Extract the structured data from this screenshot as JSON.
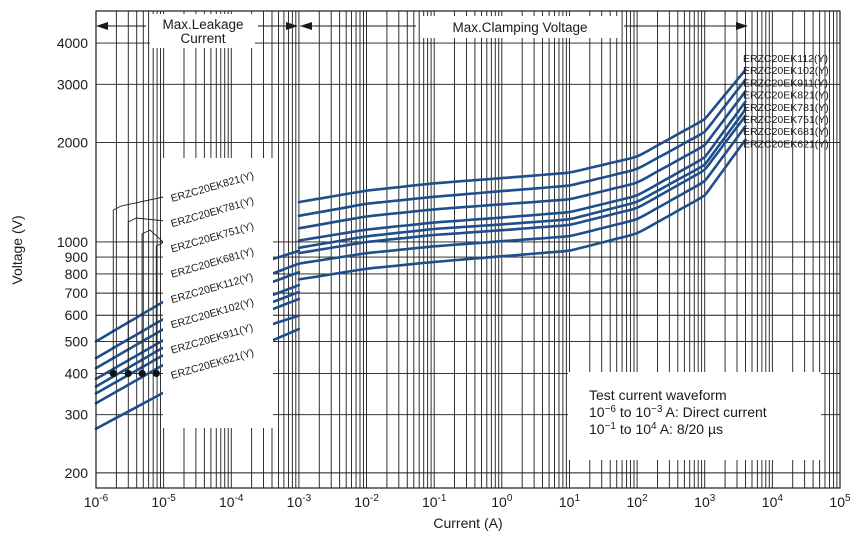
{
  "chart_data": {
    "type": "line",
    "xscale": "log",
    "yscale": "log",
    "xlabel": "Current (A)",
    "ylabel": "Voltage (V)",
    "xlim": [
      1e-06,
      100000
    ],
    "ylim": [
      180,
      5000
    ],
    "grid": true,
    "x_ticks": [
      {
        "base": "10",
        "exp": "-6"
      },
      {
        "base": "10",
        "exp": "-5"
      },
      {
        "base": "10",
        "exp": "-4"
      },
      {
        "base": "10",
        "exp": "-3"
      },
      {
        "base": "10",
        "exp": "-2"
      },
      {
        "base": "10",
        "exp": "-1"
      },
      {
        "base": "10",
        "exp": "0"
      },
      {
        "base": "10",
        "exp": "1"
      },
      {
        "base": "10",
        "exp": "2"
      },
      {
        "base": "10",
        "exp": "3"
      },
      {
        "base": "10",
        "exp": "4"
      },
      {
        "base": "10",
        "exp": "5"
      }
    ],
    "y_ticks": [
      "200",
      "300",
      "400",
      "500",
      "600",
      "700",
      "800",
      "900",
      "1000",
      "2000",
      "3000",
      "4000"
    ],
    "regions": {
      "leakage": "Max.Leakage Current",
      "leakage_line1": "Max.Leakage",
      "leakage_line2": "Current",
      "clamping": "Max.Clamping Voltage"
    },
    "note": {
      "line1": "Test current waveform",
      "line2_a": "10",
      "line2_e1": "−6",
      "line2_b": " to 10",
      "line2_e2": "−3",
      "line2_c": " A: Direct current",
      "line3_a": "10",
      "line3_e1": "−1",
      "line3_b": " to 10",
      "line3_e2": "4",
      "line3_c": " A: 8/20 µs"
    },
    "leakage_series": [
      {
        "name": "ERZC20EK821(Y)",
        "x": [
          1e-06,
          1e-05,
          0.0001,
          0.001
        ],
        "y": [
          500,
          660,
          810,
          940
        ]
      },
      {
        "name": "ERZC20EK781(Y)",
        "x": [
          1e-06,
          1e-05,
          0.0001,
          0.001
        ],
        "y": [
          445,
          585,
          720,
          860
        ]
      },
      {
        "name": "ERZC20EK751(Y)",
        "x": [
          1e-06,
          1e-05,
          0.0001,
          0.001
        ],
        "y": [
          415,
          545,
          680,
          810
        ]
      },
      {
        "name": "ERZC20EK681(Y)",
        "x": [
          1e-06,
          1e-05,
          0.0001,
          0.001
        ],
        "y": [
          385,
          505,
          620,
          740
        ]
      },
      {
        "name": "ERZC20EK112(Y)",
        "x": [
          1e-06,
          1e-05,
          0.0001,
          0.001
        ],
        "y": [
          365,
          480,
          590,
          705
        ]
      },
      {
        "name": "ERZC20EK102(Y)",
        "x": [
          1e-06,
          1e-05,
          0.0001,
          0.001
        ],
        "y": [
          348,
          455,
          560,
          672
        ]
      },
      {
        "name": "ERZC20EK911(Y)",
        "x": [
          1e-06,
          1e-05,
          0.0001,
          0.001
        ],
        "y": [
          325,
          425,
          515,
          598
        ]
      },
      {
        "name": "ERZC20EK621(Y)",
        "x": [
          1e-06,
          1e-05,
          0.0001,
          0.001
        ],
        "y": [
          272,
          350,
          445,
          545
        ]
      }
    ],
    "leakage_points_y": 400,
    "clamping_series": [
      {
        "name": "ERZC20EK112(Y)",
        "x": [
          0.001,
          0.01,
          0.1,
          1,
          10,
          100,
          1000,
          4000
        ],
        "y": [
          1320,
          1430,
          1505,
          1560,
          1620,
          1810,
          2350,
          3320
        ]
      },
      {
        "name": "ERZC20EK102(Y)",
        "x": [
          0.001,
          0.01,
          0.1,
          1,
          10,
          100,
          1000,
          4000
        ],
        "y": [
          1200,
          1305,
          1370,
          1425,
          1480,
          1660,
          2150,
          3100
        ]
      },
      {
        "name": "ERZC20EK911(Y)",
        "x": [
          0.001,
          0.01,
          0.1,
          1,
          10,
          100,
          1000,
          4000
        ],
        "y": [
          1100,
          1195,
          1255,
          1300,
          1345,
          1510,
          1960,
          2860
        ]
      },
      {
        "name": "ERZC20EK821(Y)",
        "x": [
          0.001,
          0.01,
          0.1,
          1,
          10,
          100,
          1000,
          4000
        ],
        "y": [
          1010,
          1090,
          1145,
          1185,
          1230,
          1380,
          1800,
          2660
        ]
      },
      {
        "name": "ERZC20EK781(Y)",
        "x": [
          0.001,
          0.01,
          0.1,
          1,
          10,
          100,
          1000,
          4000
        ],
        "y": [
          960,
          1040,
          1095,
          1130,
          1170,
          1320,
          1710,
          2520
        ]
      },
      {
        "name": "ERZC20EK751(Y)",
        "x": [
          0.001,
          0.01,
          0.1,
          1,
          10,
          100,
          1000,
          4000
        ],
        "y": [
          925,
          1000,
          1050,
          1085,
          1125,
          1265,
          1650,
          2410
        ]
      },
      {
        "name": "ERZC20EK681(Y)",
        "x": [
          0.001,
          0.01,
          0.1,
          1,
          10,
          100,
          1000,
          4000
        ],
        "y": [
          860,
          925,
          970,
          1005,
          1040,
          1170,
          1525,
          2240
        ]
      },
      {
        "name": "ERZC20EK621(Y)",
        "x": [
          0.001,
          0.01,
          0.1,
          1,
          10,
          100,
          1000,
          4000
        ],
        "y": [
          770,
          830,
          870,
          905,
          940,
          1060,
          1380,
          2040
        ]
      }
    ]
  }
}
